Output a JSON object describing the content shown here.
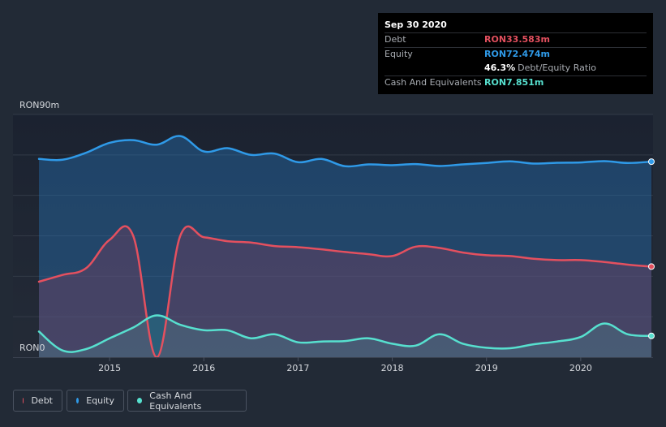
{
  "tooltip": {
    "date": "Sep 30 2020",
    "rows": [
      {
        "label": "Debt",
        "value": "RON33.583m",
        "color": "#e4505f"
      },
      {
        "label": "Equity",
        "value": "RON72.474m",
        "color": "#2f9ae8"
      }
    ],
    "ratio_pct": "46.3%",
    "ratio_label": "Debt/Equity Ratio",
    "cash": {
      "label": "Cash And Equivalents",
      "value": "RON7.851m",
      "color": "#57e0cf"
    }
  },
  "legend": [
    {
      "label": "Debt",
      "color": "#e4505f"
    },
    {
      "label": "Equity",
      "color": "#2f9ae8"
    },
    {
      "label": "Cash And Equivalents",
      "color": "#57e0cf"
    }
  ],
  "chart_data": {
    "type": "area",
    "title": "",
    "xlabel": "",
    "ylabel": "",
    "y_unit": "RON m",
    "ylim": [
      0,
      90
    ],
    "y_tick_labels": [
      {
        "value": 90,
        "label": "RON90m"
      },
      {
        "value": 0,
        "label": "RON0"
      }
    ],
    "x_ticks": [
      2015,
      2016,
      2017,
      2018,
      2019,
      2020
    ],
    "xlim": [
      2014.25,
      2020.75
    ],
    "series": [
      {
        "name": "Equity",
        "color": "#2f9ae8",
        "points": [
          [
            2014.25,
            73.5
          ],
          [
            2014.5,
            73.2
          ],
          [
            2014.75,
            75.8
          ],
          [
            2015.0,
            79.5
          ],
          [
            2015.25,
            80.5
          ],
          [
            2015.5,
            78.8
          ],
          [
            2015.75,
            82.0
          ],
          [
            2016.0,
            76.3
          ],
          [
            2016.25,
            77.5
          ],
          [
            2016.5,
            75.0
          ],
          [
            2016.75,
            75.5
          ],
          [
            2017.0,
            72.3
          ],
          [
            2017.25,
            73.5
          ],
          [
            2017.5,
            70.8
          ],
          [
            2017.75,
            71.5
          ],
          [
            2018.0,
            71.2
          ],
          [
            2018.25,
            71.6
          ],
          [
            2018.5,
            70.9
          ],
          [
            2018.75,
            71.5
          ],
          [
            2019.0,
            72.0
          ],
          [
            2019.25,
            72.6
          ],
          [
            2019.5,
            71.8
          ],
          [
            2019.75,
            72.1
          ],
          [
            2020.0,
            72.2
          ],
          [
            2020.25,
            72.7
          ],
          [
            2020.5,
            72.0
          ],
          [
            2020.75,
            72.5
          ]
        ]
      },
      {
        "name": "Debt",
        "color": "#e4505f",
        "points": [
          [
            2014.25,
            28.0
          ],
          [
            2014.5,
            30.5
          ],
          [
            2014.75,
            33.0
          ],
          [
            2015.0,
            43.5
          ],
          [
            2015.25,
            45.0
          ],
          [
            2015.5,
            0.0
          ],
          [
            2015.75,
            45.0
          ],
          [
            2016.0,
            44.5
          ],
          [
            2016.25,
            43.0
          ],
          [
            2016.5,
            42.5
          ],
          [
            2016.75,
            41.2
          ],
          [
            2017.0,
            40.8
          ],
          [
            2017.25,
            40.0
          ],
          [
            2017.5,
            39.0
          ],
          [
            2017.75,
            38.2
          ],
          [
            2018.0,
            37.5
          ],
          [
            2018.25,
            41.0
          ],
          [
            2018.5,
            40.5
          ],
          [
            2018.75,
            38.8
          ],
          [
            2019.0,
            37.8
          ],
          [
            2019.25,
            37.5
          ],
          [
            2019.5,
            36.5
          ],
          [
            2019.75,
            36.0
          ],
          [
            2020.0,
            36.0
          ],
          [
            2020.25,
            35.3
          ],
          [
            2020.5,
            34.3
          ],
          [
            2020.75,
            33.6
          ]
        ]
      },
      {
        "name": "Cash And Equivalents",
        "color": "#57e0cf",
        "points": [
          [
            2014.25,
            9.5
          ],
          [
            2014.5,
            2.5
          ],
          [
            2014.75,
            3.0
          ],
          [
            2015.0,
            7.0
          ],
          [
            2015.25,
            11.0
          ],
          [
            2015.5,
            15.5
          ],
          [
            2015.75,
            12.0
          ],
          [
            2016.0,
            10.0
          ],
          [
            2016.25,
            10.0
          ],
          [
            2016.5,
            7.0
          ],
          [
            2016.75,
            8.5
          ],
          [
            2017.0,
            5.5
          ],
          [
            2017.25,
            5.8
          ],
          [
            2017.5,
            6.0
          ],
          [
            2017.75,
            7.0
          ],
          [
            2018.0,
            5.0
          ],
          [
            2018.25,
            4.3
          ],
          [
            2018.5,
            8.5
          ],
          [
            2018.75,
            5.0
          ],
          [
            2019.0,
            3.5
          ],
          [
            2019.25,
            3.3
          ],
          [
            2019.5,
            4.8
          ],
          [
            2019.75,
            5.8
          ],
          [
            2020.0,
            7.5
          ],
          [
            2020.25,
            12.5
          ],
          [
            2020.5,
            8.5
          ],
          [
            2020.75,
            7.9
          ]
        ]
      }
    ]
  }
}
